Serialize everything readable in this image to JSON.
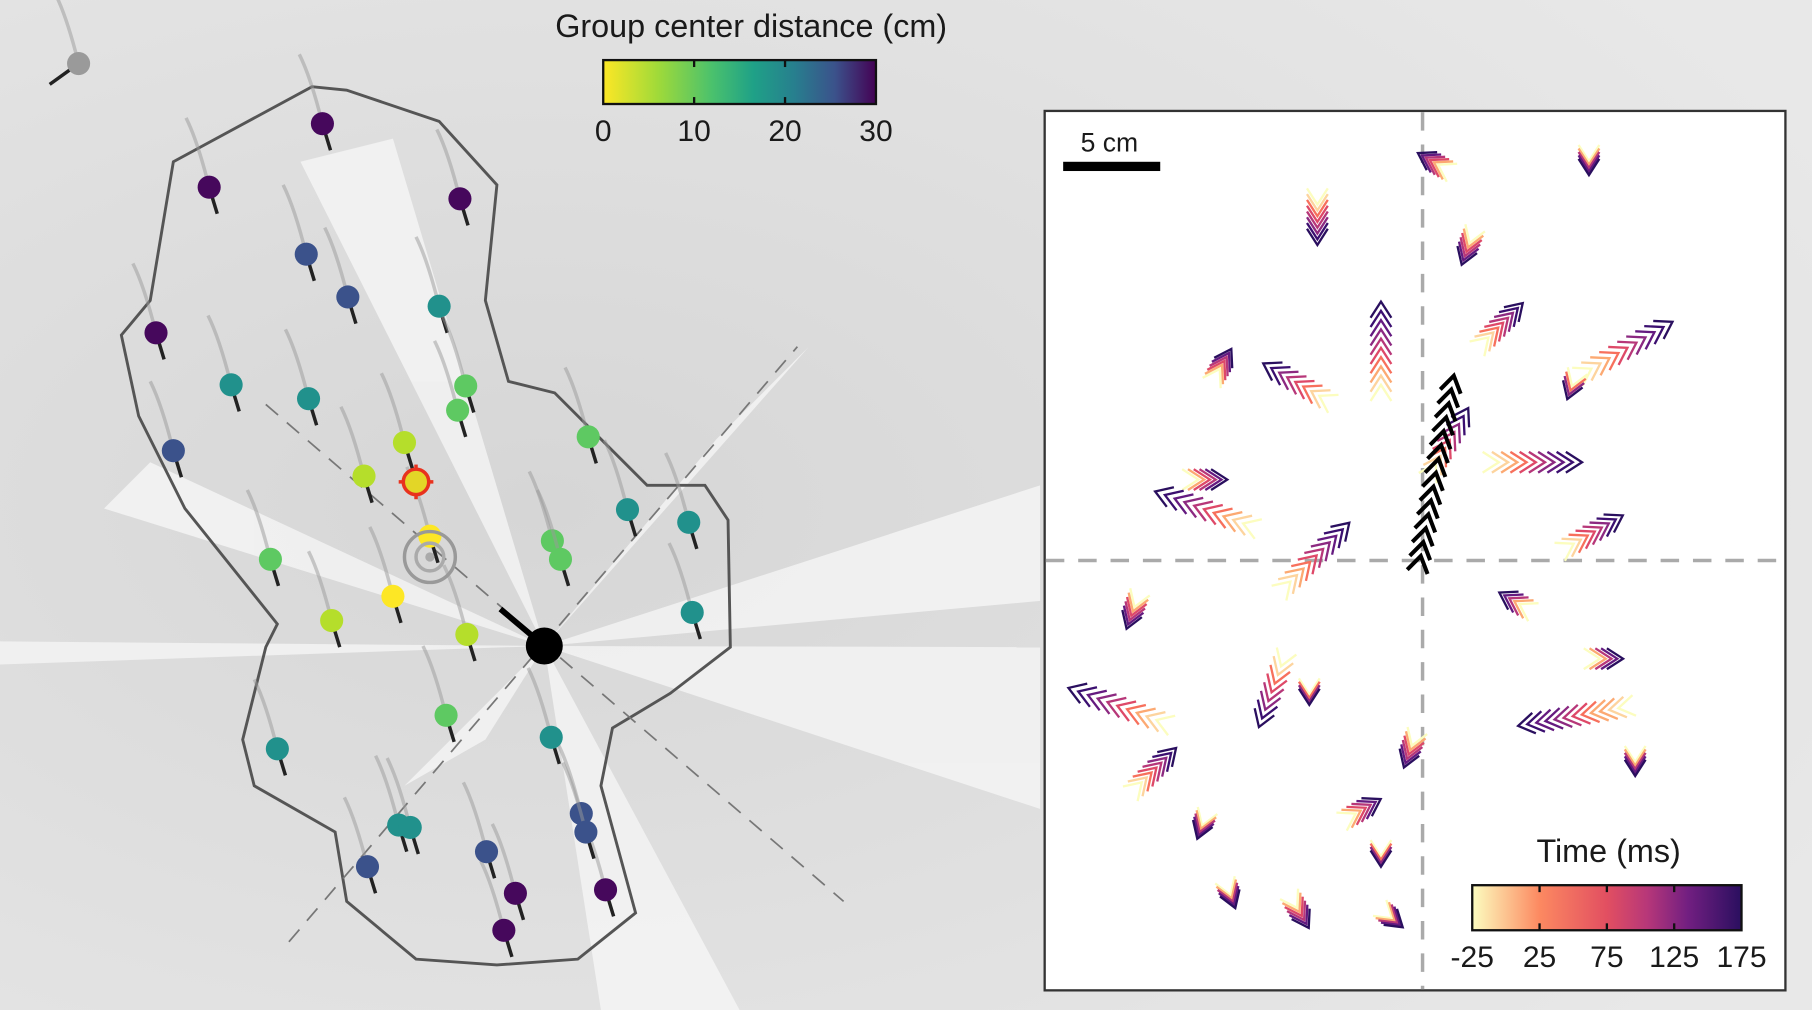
{
  "left_panel": {
    "colorbar": {
      "title": "Group center distance (cm)",
      "ticks": [
        "0",
        "10",
        "20",
        "30"
      ],
      "colormap": "viridis",
      "range": [
        0,
        30
      ]
    }
  },
  "right_panel": {
    "scale_bar": {
      "label": "5 cm"
    },
    "colorbar": {
      "title": "Time (ms)",
      "ticks": [
        "-25",
        "25",
        "75",
        "125",
        "175"
      ],
      "colormap": "magma",
      "range": [
        -25,
        175
      ]
    }
  },
  "colors": {
    "background": "#e4e4e4",
    "highlight": "#e8321e",
    "center_marker": "#000000"
  }
}
